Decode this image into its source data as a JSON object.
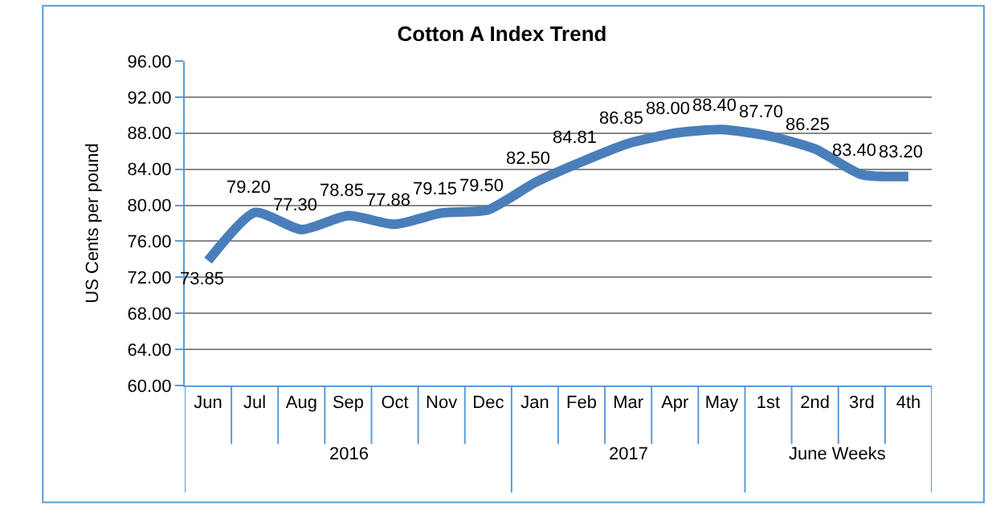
{
  "chart_data": {
    "type": "line",
    "title": "Cotton A Index Trend",
    "ylabel": "US Cents per pound",
    "categories": [
      "Jun",
      "Jul",
      "Aug",
      "Sep",
      "Oct",
      "Nov",
      "Dec",
      "Jan",
      "Feb",
      "Mar",
      "Apr",
      "May",
      "1st",
      "2nd",
      "3rd",
      "4th"
    ],
    "series": [
      {
        "color": "#4a7ebb",
        "values": [
          73.85,
          79.2,
          77.3,
          78.85,
          77.88,
          79.15,
          79.5,
          82.5,
          84.81,
          86.85,
          88.0,
          88.4,
          87.7,
          86.25,
          83.4,
          83.2
        ],
        "value_labels": [
          "73.85",
          "79.20",
          "77.30",
          "78.85",
          "77.88",
          "79.15",
          "79.50",
          "82.50",
          "84.81",
          "86.85",
          "88.00",
          "88.40",
          "87.70",
          "86.25",
          "83.40",
          "83.20"
        ]
      }
    ],
    "ylim": [
      60,
      96
    ],
    "yticks": [
      {
        "value": 60,
        "label": "60.00"
      },
      {
        "value": 64,
        "label": "64.00"
      },
      {
        "value": 68,
        "label": "68.00"
      },
      {
        "value": 72,
        "label": "72.00"
      },
      {
        "value": 76,
        "label": "76.00"
      },
      {
        "value": 80,
        "label": "80.00"
      },
      {
        "value": 84,
        "label": "84.00"
      },
      {
        "value": 88,
        "label": "88.00"
      },
      {
        "value": 92,
        "label": "92.00"
      },
      {
        "value": 96,
        "label": "96.00"
      }
    ],
    "grid": "y",
    "marker": "none",
    "line_style": "solid",
    "annotations": [
      "2016",
      "2017",
      "June Weeks"
    ]
  }
}
